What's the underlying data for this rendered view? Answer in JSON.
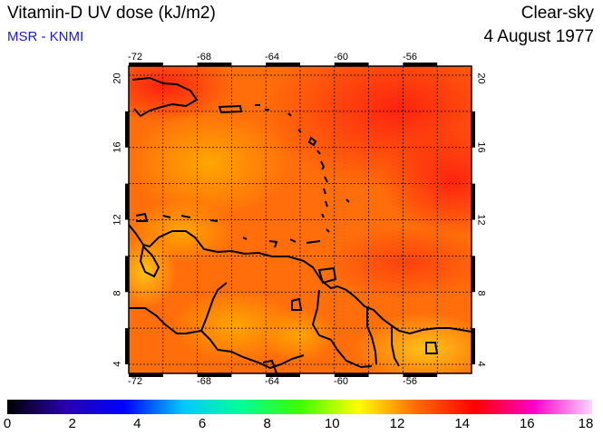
{
  "header": {
    "title": "Vitamin-D UV dose (kJ/m2)",
    "source": "MSR - KNMI",
    "sky_condition": "Clear-sky",
    "date": "4 August 1977"
  },
  "map": {
    "lon_ticks": [
      "-72",
      "-68",
      "-64",
      "-60",
      "-56"
    ],
    "lat_ticks": [
      "20",
      "16",
      "12",
      "8",
      "4"
    ],
    "lon_range": [
      -72,
      -52
    ],
    "lat_range": [
      3.5,
      20.5
    ],
    "grid": true,
    "colors": {
      "low": "#ffd21a",
      "mid": "#ff8a00",
      "high": "#ff2a10"
    }
  },
  "colorbar": {
    "labels": [
      "0",
      "2",
      "4",
      "6",
      "8",
      "10",
      "12",
      "14",
      "16",
      "18"
    ],
    "range": [
      0,
      18
    ],
    "stops": [
      "#000000",
      "#2a00b0",
      "#0000ff",
      "#00c8ff",
      "#00ff96",
      "#3cff00",
      "#ffff00",
      "#ff6a00",
      "#ff0000",
      "#ff00c8",
      "#ffd6ff"
    ]
  }
}
